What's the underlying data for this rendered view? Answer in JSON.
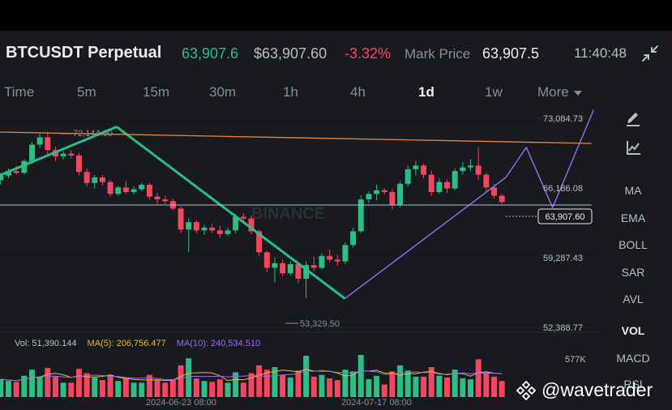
{
  "header": {
    "pair": "BTCUSDT Perpetual",
    "last_price": "63,907.6",
    "usd_price": "$63,907.60",
    "change": "-3.32%",
    "mark_label": "Mark Price",
    "mark_value": "63,907.5",
    "time": "11:40:48"
  },
  "timeframes": [
    {
      "label": "Time"
    },
    {
      "label": "5m"
    },
    {
      "label": "15m"
    },
    {
      "label": "30m"
    },
    {
      "label": "1h"
    },
    {
      "label": "4h"
    },
    {
      "label": "1d",
      "active": true
    },
    {
      "label": "1w"
    },
    {
      "label": "More"
    }
  ],
  "indicators": [
    "MA",
    "EMA",
    "BOLL",
    "SAR",
    "AVL",
    "VOL",
    "MACD",
    "RSI"
  ],
  "price_axis": [
    "73,084.73",
    "66,186.08",
    "59,287.43",
    "52,388.77"
  ],
  "current_price_tag": "63,907.60",
  "annotations": {
    "high": "72,144.00",
    "low": "53,329.50"
  },
  "watermark_center": "BINANCE",
  "volume": {
    "vol_label": "Vol: 51,390.144",
    "ma5_label": "MA(5): 206,756.477",
    "ma10_label": "MA(10): 240,534.510",
    "axis_label": "577K"
  },
  "date_axis": [
    "2024-06-23 08:00",
    "2024-07-17 08:00"
  ],
  "watermark": "@wavetrader",
  "colors": {
    "up": "#2ebd85",
    "down": "#f6465d",
    "bg": "#181a20",
    "trend": "#e8873a",
    "zigzag": "#9a6cf0"
  },
  "chart_data": {
    "type": "candlestick",
    "interval": "1d",
    "ylim": [
      50000,
      74500
    ],
    "trendlines": [
      {
        "from": {
          "day": 0,
          "price": 66700
        },
        "to": {
          "day": 41,
          "price": 72144
        },
        "color": "#2ebd85"
      },
      {
        "from": {
          "day": 41,
          "price": 72144
        },
        "to": {
          "day": 119,
          "price": 53329.5
        },
        "color": "#2ebd85"
      },
      {
        "from": {
          "day": 119,
          "price": 53329.5
        },
        "to": {
          "day": 174,
          "price": 66600
        },
        "color": "#9a6cf0"
      }
    ],
    "candles": [
      {
        "o": 66300,
        "h": 67100,
        "l": 65800,
        "c": 66800
      },
      {
        "o": 66800,
        "h": 67600,
        "l": 66500,
        "c": 67300
      },
      {
        "o": 67300,
        "h": 67900,
        "l": 66900,
        "c": 67100
      },
      {
        "o": 67100,
        "h": 68600,
        "l": 66900,
        "c": 68400
      },
      {
        "o": 68400,
        "h": 70500,
        "l": 68100,
        "c": 70200
      },
      {
        "o": 70200,
        "h": 71400,
        "l": 69800,
        "c": 71000
      },
      {
        "o": 71000,
        "h": 71600,
        "l": 69000,
        "c": 69600
      },
      {
        "o": 69600,
        "h": 70000,
        "l": 68400,
        "c": 68900
      },
      {
        "o": 68900,
        "h": 69500,
        "l": 68600,
        "c": 69200
      },
      {
        "o": 69200,
        "h": 69600,
        "l": 68700,
        "c": 69000
      },
      {
        "o": 69000,
        "h": 69300,
        "l": 66800,
        "c": 67200
      },
      {
        "o": 67200,
        "h": 67600,
        "l": 65600,
        "c": 66000
      },
      {
        "o": 66000,
        "h": 66900,
        "l": 65400,
        "c": 66600
      },
      {
        "o": 66600,
        "h": 66900,
        "l": 65700,
        "c": 66100
      },
      {
        "o": 66100,
        "h": 66300,
        "l": 64500,
        "c": 64800
      },
      {
        "o": 64800,
        "h": 65700,
        "l": 64600,
        "c": 65500
      },
      {
        "o": 65500,
        "h": 66200,
        "l": 64800,
        "c": 65000
      },
      {
        "o": 65000,
        "h": 65600,
        "l": 64700,
        "c": 65300
      },
      {
        "o": 65300,
        "h": 66000,
        "l": 65100,
        "c": 65800
      },
      {
        "o": 65800,
        "h": 66000,
        "l": 64200,
        "c": 64500
      },
      {
        "o": 64500,
        "h": 64900,
        "l": 63700,
        "c": 64200
      },
      {
        "o": 64200,
        "h": 64600,
        "l": 63700,
        "c": 64000
      },
      {
        "o": 64000,
        "h": 64300,
        "l": 63000,
        "c": 63200
      },
      {
        "o": 63200,
        "h": 63400,
        "l": 60500,
        "c": 60900
      },
      {
        "o": 60900,
        "h": 62100,
        "l": 58400,
        "c": 61700
      },
      {
        "o": 61700,
        "h": 61900,
        "l": 60500,
        "c": 60800
      },
      {
        "o": 60800,
        "h": 61400,
        "l": 60300,
        "c": 61100
      },
      {
        "o": 61100,
        "h": 61500,
        "l": 60500,
        "c": 60800
      },
      {
        "o": 60800,
        "h": 61300,
        "l": 60000,
        "c": 60400
      },
      {
        "o": 60400,
        "h": 61100,
        "l": 60200,
        "c": 60800
      },
      {
        "o": 60800,
        "h": 62600,
        "l": 60500,
        "c": 62300
      },
      {
        "o": 62300,
        "h": 62700,
        "l": 61800,
        "c": 62100
      },
      {
        "o": 62100,
        "h": 62400,
        "l": 60400,
        "c": 60700
      },
      {
        "o": 60700,
        "h": 60900,
        "l": 58000,
        "c": 58400
      },
      {
        "o": 58400,
        "h": 58600,
        "l": 56200,
        "c": 56700
      },
      {
        "o": 56700,
        "h": 57800,
        "l": 55100,
        "c": 57200
      },
      {
        "o": 57200,
        "h": 57600,
        "l": 55800,
        "c": 56100
      },
      {
        "o": 56100,
        "h": 57400,
        "l": 55900,
        "c": 57100
      },
      {
        "o": 57100,
        "h": 57300,
        "l": 55000,
        "c": 55500
      },
      {
        "o": 55500,
        "h": 57400,
        "l": 53400,
        "c": 57000
      },
      {
        "o": 57000,
        "h": 57900,
        "l": 56300,
        "c": 56700
      },
      {
        "o": 56700,
        "h": 58300,
        "l": 56500,
        "c": 58000
      },
      {
        "o": 58000,
        "h": 58700,
        "l": 57300,
        "c": 57600
      },
      {
        "o": 57600,
        "h": 58100,
        "l": 56900,
        "c": 57400
      },
      {
        "o": 57400,
        "h": 59500,
        "l": 57100,
        "c": 59200
      },
      {
        "o": 59200,
        "h": 61100,
        "l": 58900,
        "c": 60700
      },
      {
        "o": 60700,
        "h": 64600,
        "l": 60500,
        "c": 64200
      },
      {
        "o": 64200,
        "h": 65100,
        "l": 63800,
        "c": 64800
      },
      {
        "o": 64800,
        "h": 65800,
        "l": 64100,
        "c": 65200
      },
      {
        "o": 65200,
        "h": 65400,
        "l": 64700,
        "c": 65000
      },
      {
        "o": 65000,
        "h": 65300,
        "l": 63100,
        "c": 63600
      },
      {
        "o": 63600,
        "h": 66200,
        "l": 63300,
        "c": 65900
      },
      {
        "o": 65900,
        "h": 67900,
        "l": 65600,
        "c": 67500
      },
      {
        "o": 67500,
        "h": 68400,
        "l": 66800,
        "c": 67900
      },
      {
        "o": 67900,
        "h": 68100,
        "l": 66500,
        "c": 66900
      },
      {
        "o": 66900,
        "h": 67300,
        "l": 64600,
        "c": 65000
      },
      {
        "o": 65000,
        "h": 66500,
        "l": 64800,
        "c": 66100
      },
      {
        "o": 66100,
        "h": 66400,
        "l": 64900,
        "c": 65400
      },
      {
        "o": 65400,
        "h": 67600,
        "l": 65200,
        "c": 67300
      },
      {
        "o": 67300,
        "h": 68300,
        "l": 66900,
        "c": 67700
      },
      {
        "o": 67700,
        "h": 68600,
        "l": 67300,
        "c": 67900
      },
      {
        "o": 67900,
        "h": 69900,
        "l": 66300,
        "c": 66900
      },
      {
        "o": 66900,
        "h": 67100,
        "l": 65000,
        "c": 65500
      },
      {
        "o": 65500,
        "h": 65900,
        "l": 64300,
        "c": 64600
      },
      {
        "o": 64600,
        "h": 64800,
        "l": 63700,
        "c": 63907.6
      }
    ]
  }
}
